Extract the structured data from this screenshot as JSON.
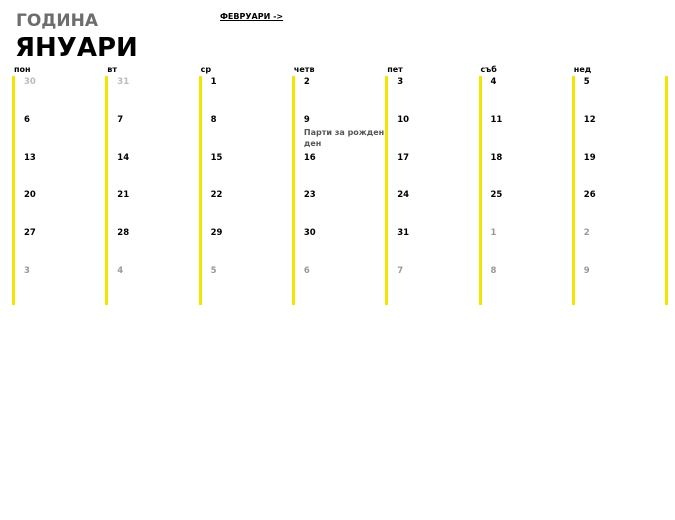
{
  "header": {
    "year": "ГОДИНА",
    "month": "ЯНУАРИ",
    "next_link": "ФЕВРУАРИ ->"
  },
  "weekdays": [
    "пон",
    "вт",
    "ср",
    "четв",
    "пет",
    "съб",
    "нед"
  ],
  "line_color": "#f2e600",
  "weeks": [
    [
      {
        "day": 30,
        "color": "#bbbbbb"
      },
      {
        "day": 31,
        "color": "#bbbbbb"
      },
      {
        "day": 1,
        "color": "#000000"
      },
      {
        "day": 2,
        "color": "#000000"
      },
      {
        "day": 3,
        "color": "#000000"
      },
      {
        "day": 4,
        "color": "#000000"
      },
      {
        "day": 5,
        "color": "#000000"
      }
    ],
    [
      {
        "day": 6,
        "color": "#000000"
      },
      {
        "day": 7,
        "color": "#000000"
      },
      {
        "day": 8,
        "color": "#000000"
      },
      {
        "day": 9,
        "color": "#000000",
        "event": "Парти за рожден ден"
      },
      {
        "day": 10,
        "color": "#000000"
      },
      {
        "day": 11,
        "color": "#000000"
      },
      {
        "day": 12,
        "color": "#000000"
      }
    ],
    [
      {
        "day": 13,
        "color": "#000000"
      },
      {
        "day": 14,
        "color": "#000000"
      },
      {
        "day": 15,
        "color": "#000000"
      },
      {
        "day": 16,
        "color": "#000000"
      },
      {
        "day": 17,
        "color": "#000000"
      },
      {
        "day": 18,
        "color": "#000000"
      },
      {
        "day": 19,
        "color": "#000000"
      }
    ],
    [
      {
        "day": 20,
        "color": "#000000"
      },
      {
        "day": 21,
        "color": "#000000"
      },
      {
        "day": 22,
        "color": "#000000"
      },
      {
        "day": 23,
        "color": "#000000"
      },
      {
        "day": 24,
        "color": "#000000"
      },
      {
        "day": 25,
        "color": "#000000"
      },
      {
        "day": 26,
        "color": "#000000"
      }
    ],
    [
      {
        "day": 27,
        "color": "#000000"
      },
      {
        "day": 28,
        "color": "#000000"
      },
      {
        "day": 29,
        "color": "#000000"
      },
      {
        "day": 30,
        "color": "#000000"
      },
      {
        "day": 31,
        "color": "#000000"
      },
      {
        "day": 1,
        "color": "#999999"
      },
      {
        "day": 2,
        "color": "#999999"
      }
    ],
    [
      {
        "day": 3,
        "color": "#999999"
      },
      {
        "day": 4,
        "color": "#999999"
      },
      {
        "day": 5,
        "color": "#999999"
      },
      {
        "day": 6,
        "color": "#999999"
      },
      {
        "day": 7,
        "color": "#999999"
      },
      {
        "day": 8,
        "color": "#999999"
      },
      {
        "day": 9,
        "color": "#999999"
      }
    ]
  ]
}
